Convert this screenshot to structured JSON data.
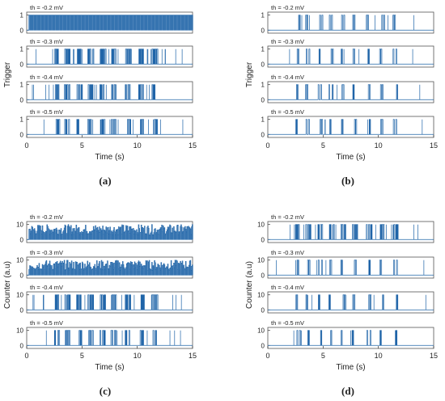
{
  "figure": {
    "time_label": "Time (s)",
    "x_ticks": [
      "0",
      "5",
      "10",
      "15"
    ]
  },
  "chart_data": [
    {
      "type": "line",
      "panel": "a",
      "caption": "(a)",
      "ylabel": "Trigger",
      "y_ticks": [
        "0",
        "1"
      ],
      "xlabel": "Time (s)",
      "xlim": [
        0,
        15
      ],
      "ylim": [
        -0.2,
        1.2
      ],
      "series": [
        {
          "title": "th = -0.2 mV",
          "density": 1.0
        },
        {
          "title": "th = -0.3 mV",
          "density": 0.5
        },
        {
          "title": "th = -0.4 mV",
          "density": 0.35
        },
        {
          "title": "th = -0.5 mV",
          "density": 0.3
        }
      ]
    },
    {
      "type": "line",
      "panel": "b",
      "caption": "(b)",
      "ylabel": "Trigger",
      "y_ticks": [
        "0",
        "1"
      ],
      "xlabel": "Time (s)",
      "xlim": [
        0,
        15
      ],
      "ylim": [
        -0.2,
        1.2
      ],
      "series": [
        {
          "title": "th = -0.2 mV",
          "density": 0.15
        },
        {
          "title": "th = -0.3 mV",
          "density": 0.1
        },
        {
          "title": "th = -0.4 mV",
          "density": 0.1
        },
        {
          "title": "th = -0.5 mV",
          "density": 0.1
        }
      ]
    },
    {
      "type": "line",
      "panel": "c",
      "caption": "(c)",
      "ylabel": "Counter (a.u)",
      "y_ticks": [
        "0",
        "10"
      ],
      "xlabel": "Time (s)",
      "xlim": [
        0,
        15
      ],
      "ylim": [
        -2,
        12
      ],
      "series": [
        {
          "title": "th = -0.2 mV",
          "density": 1.0
        },
        {
          "title": "th = -0.3 mV",
          "density": 0.85
        },
        {
          "title": "th = -0.4 mV",
          "density": 0.45
        },
        {
          "title": "th = -0.5 mV",
          "density": 0.3
        }
      ]
    },
    {
      "type": "line",
      "panel": "d",
      "caption": "(d)",
      "ylabel": "Counter (a.u)",
      "y_ticks": [
        "0",
        "10"
      ],
      "xlabel": "Time (s)",
      "xlim": [
        0,
        15
      ],
      "ylim": [
        -2,
        12
      ],
      "series": [
        {
          "title": "th = -0.2 mV",
          "density": 0.35
        },
        {
          "title": "th = -0.3 mV",
          "density": 0.15
        },
        {
          "title": "th = -0.4 mV",
          "density": 0.12
        },
        {
          "title": "th = -0.5 mV",
          "density": 0.12
        }
      ]
    }
  ],
  "colors": {
    "trace": "#1f64a8",
    "axis": "#333333",
    "frame": "#555555"
  }
}
